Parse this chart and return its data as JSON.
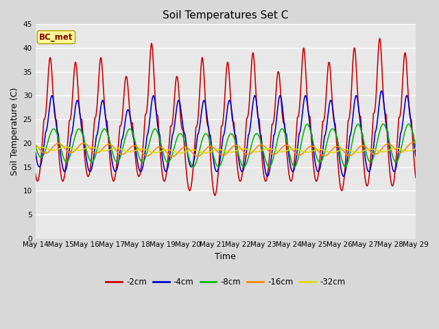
{
  "title": "Soil Temperatures Set C",
  "xlabel": "Time",
  "ylabel": "Soil Temperature (C)",
  "ylim": [
    0,
    45
  ],
  "yticks": [
    0,
    5,
    10,
    15,
    20,
    25,
    30,
    35,
    40,
    45
  ],
  "annotation_label": "BC_met",
  "series": {
    "-2cm": {
      "color": "#cc0000",
      "lw": 1.2
    },
    "-4cm": {
      "color": "#0000cc",
      "lw": 1.2
    },
    "-8cm": {
      "color": "#00bb00",
      "lw": 1.2
    },
    "-16cm": {
      "color": "#ff8800",
      "lw": 1.2
    },
    "-32cm": {
      "color": "#dddd00",
      "lw": 1.2
    }
  },
  "legend_order": [
    "-2cm",
    "-4cm",
    "-8cm",
    "-16cm",
    "-32cm"
  ],
  "bg_color": "#d8d8d8",
  "plot_bg": "#e8e8e8",
  "tick_label_dates": [
    "May 14",
    "May 15",
    "May 16",
    "May 17",
    "May 18",
    "May 19",
    "May 20",
    "May 21",
    "May 22",
    "May 23",
    "May 24",
    "May 25",
    "May 26",
    "May 27",
    "May 28",
    "May 29"
  ],
  "num_days": 15
}
